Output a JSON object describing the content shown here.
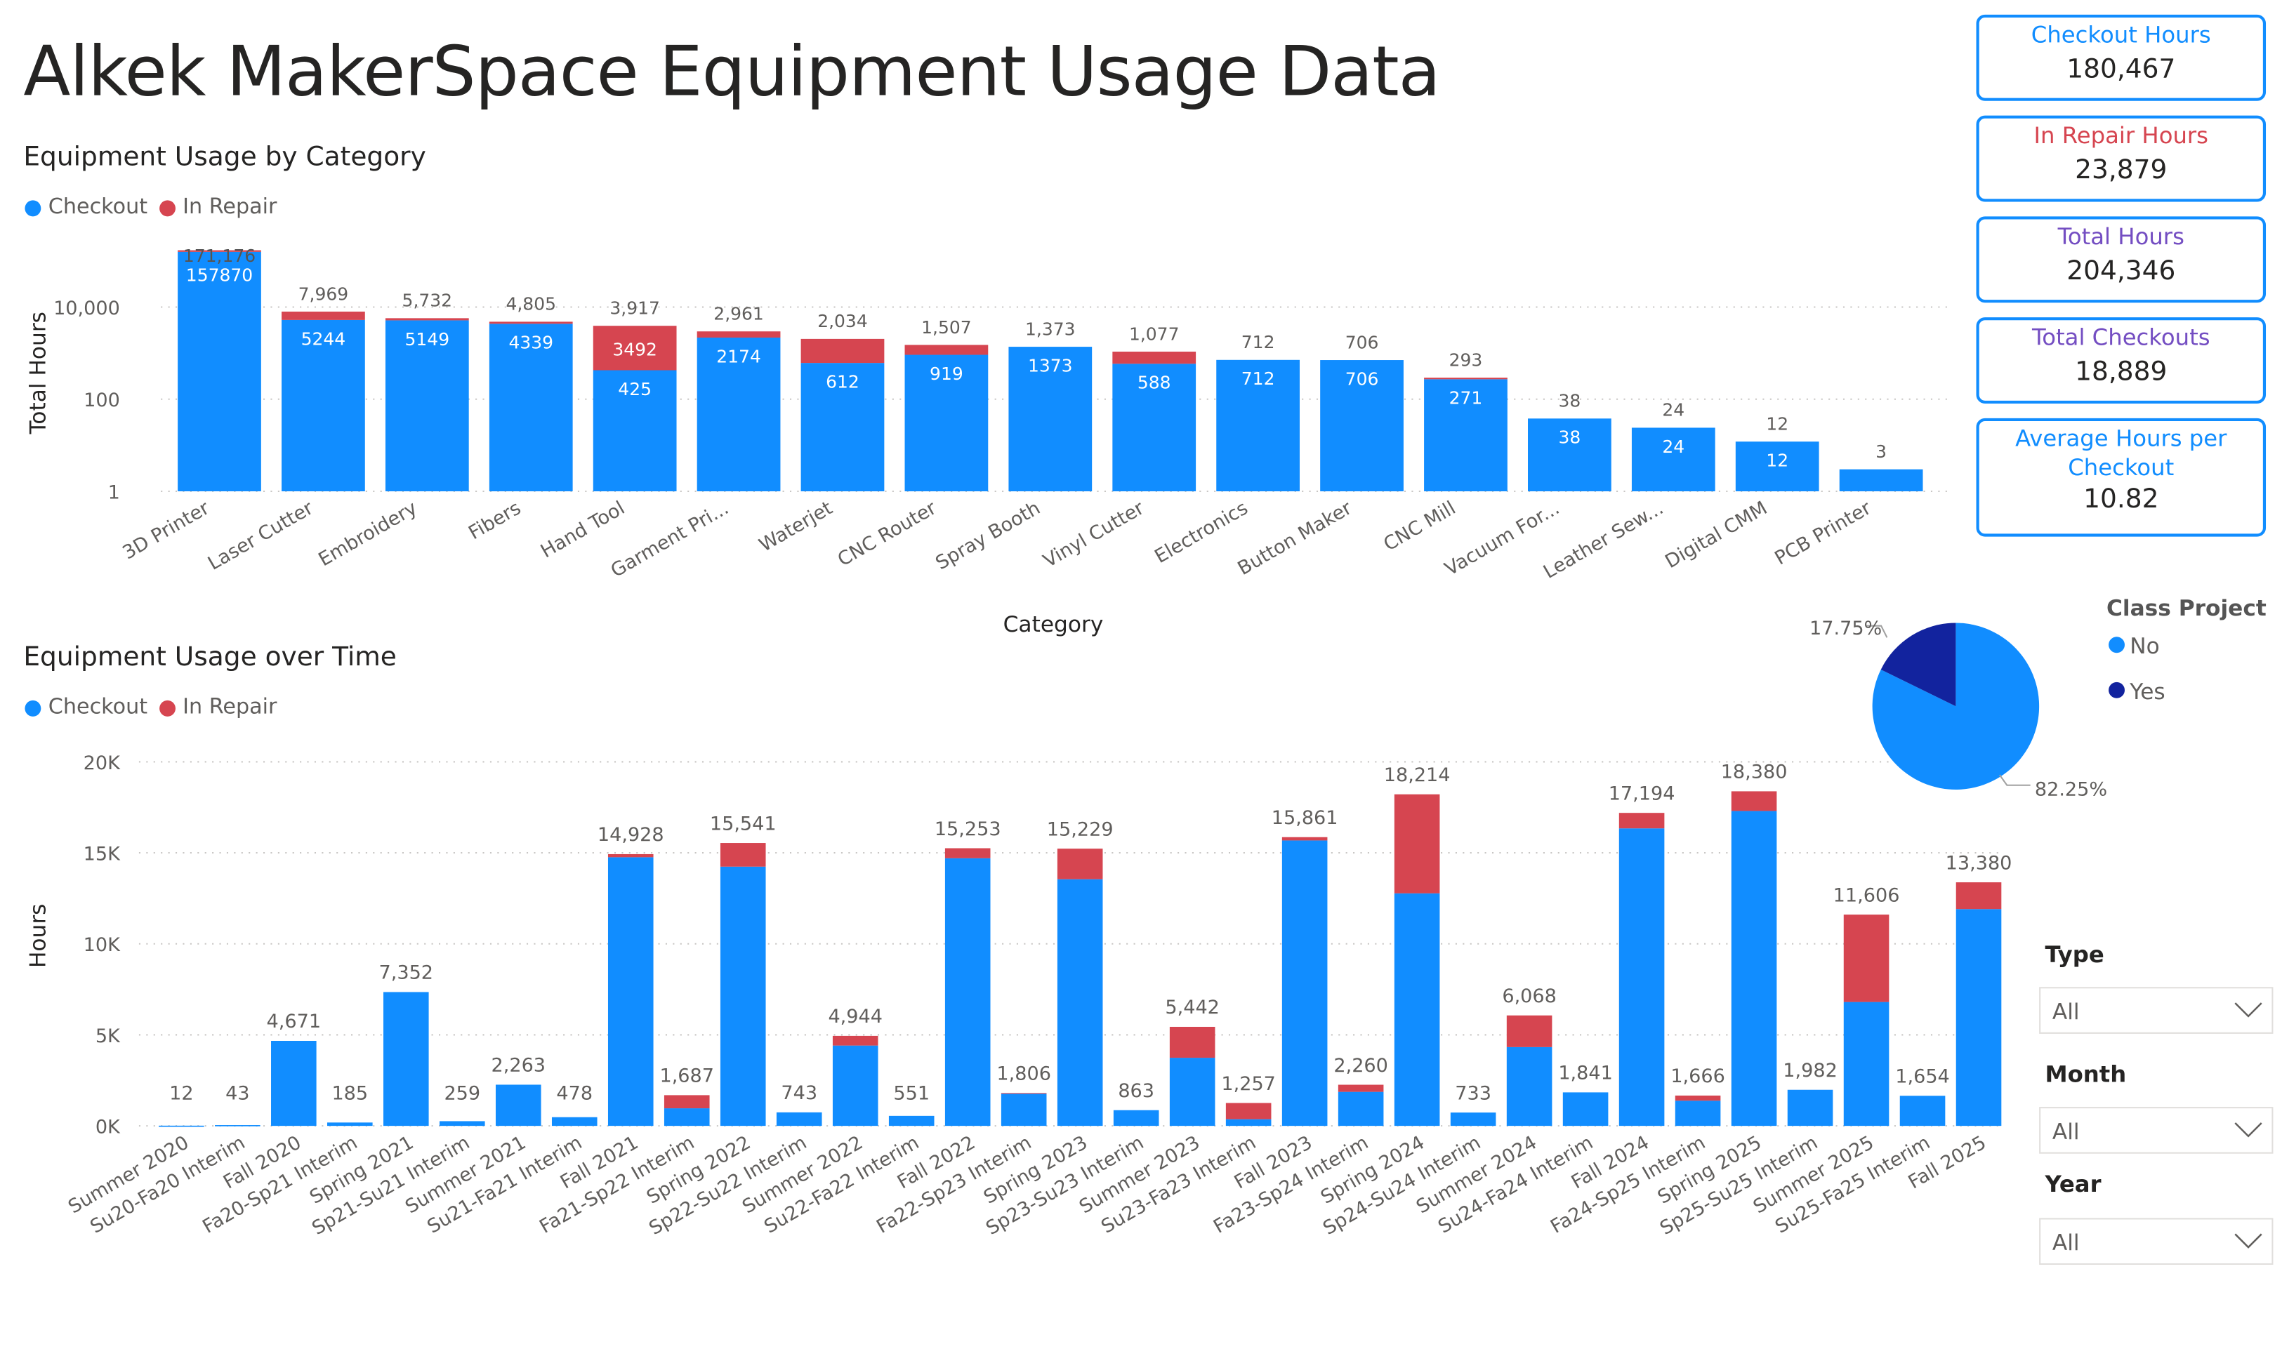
{
  "title": "Alkek MakerSpace Equipment Usage Data",
  "colors": {
    "checkout": "#118dff",
    "in_repair": "#d64550",
    "class_yes": "#12239e",
    "purple": "#744ec2"
  },
  "category_chart": {
    "section_title": "Equipment Usage by Category",
    "legend": [
      "Checkout",
      "In Repair"
    ]
  },
  "time_chart": {
    "section_title": "Equipment Usage over Time",
    "legend": [
      "Checkout",
      "In Repair"
    ]
  },
  "chart_data": [
    {
      "type": "bar",
      "stacked": true,
      "xlabel": "Category",
      "ylabel": "Total Hours",
      "yscale": "log",
      "yticks": [
        "1",
        "100",
        "10,000"
      ],
      "grid": true,
      "legend_position": "top-left",
      "categories": [
        "3D Printer",
        "Laser Cutter",
        "Embroidery",
        "Fibers",
        "Hand Tool",
        "Garment Pri...",
        "Waterjet",
        "CNC Router",
        "Spray Booth",
        "Vinyl Cutter",
        "Electronics",
        "Button Maker",
        "CNC Mill",
        "Vacuum For...",
        "Leather Sew...",
        "Digital CMM",
        "PCB Printer"
      ],
      "series": [
        {
          "name": "Checkout",
          "values": [
            157870,
            5244,
            5149,
            4339,
            425,
            2174,
            612,
            919,
            1373,
            588,
            712,
            706,
            271,
            38,
            24,
            12,
            3
          ]
        },
        {
          "name": "In Repair",
          "values": [
            13306,
            2725,
            583,
            466,
            3492,
            787,
            1422,
            588,
            0,
            489,
            0,
            0,
            22,
            0,
            0,
            0,
            0
          ]
        }
      ],
      "inner_labels": [
        "157870",
        "5244",
        "5149",
        "4339",
        "425",
        "2174",
        "612",
        "919",
        "1373",
        "588",
        "712",
        "706",
        "271",
        "38",
        "24",
        "12",
        ""
      ],
      "repair_labels": [
        "",
        "",
        "",
        "",
        "3492",
        "",
        "",
        "",
        "",
        "",
        "",
        "",
        "",
        "",
        "",
        "",
        ""
      ],
      "total_labels": [
        "171,176",
        "7,969",
        "5,732",
        "4,805",
        "3,917",
        "2,961",
        "2,034",
        "1,507",
        "1,373",
        "1,077",
        "712",
        "706",
        "293",
        "38",
        "24",
        "12",
        "3"
      ]
    },
    {
      "type": "bar",
      "stacked": true,
      "xlabel": "",
      "ylabel": "Hours",
      "ylim": [
        0,
        20000
      ],
      "yticks": [
        "0K",
        "5K",
        "10K",
        "15K",
        "20K"
      ],
      "grid": true,
      "legend_position": "top-left",
      "categories": [
        "Summer 2020",
        "Su20-Fa20 Interim",
        "Fall 2020",
        "Fa20-Sp21 Interim",
        "Spring 2021",
        "Sp21-Su21 Interim",
        "Summer 2021",
        "Su21-Fa21 Interim",
        "Fall 2021",
        "Fa21-Sp22 Interim",
        "Spring 2022",
        "Sp22-Su22 Interim",
        "Summer 2022",
        "Su22-Fa22 Interim",
        "Fall 2022",
        "Fa22-Sp23 Interim",
        "Spring 2023",
        "Sp23-Su23 Interim",
        "Summer 2023",
        "Su23-Fa23 Interim",
        "Fall 2023",
        "Fa23-Sp24 Interim",
        "Spring 2024",
        "Sp24-Su24 Interim",
        "Summer 2024",
        "Su24-Fa24 Interim",
        "Fall 2024",
        "Fa24-Sp25 Interim",
        "Spring 2025",
        "Sp25-Su25 Interim",
        "Summer 2025",
        "Su25-Fa25 Interim",
        "Fall 2025"
      ],
      "series": [
        {
          "name": "Checkout",
          "values": [
            12,
            43,
            4671,
            185,
            7352,
            259,
            2263,
            478,
            14758,
            967,
            14241,
            743,
            4414,
            551,
            14703,
            1766,
            13549,
            863,
            3742,
            367,
            15681,
            1870,
            12774,
            733,
            4328,
            1841,
            16344,
            1386,
            17300,
            1982,
            6806,
            1654,
            11910
          ]
        },
        {
          "name": "In Repair",
          "values": [
            0,
            0,
            0,
            0,
            0,
            0,
            0,
            0,
            170,
            720,
            1300,
            0,
            530,
            0,
            550,
            40,
            1680,
            0,
            1700,
            890,
            180,
            390,
            5440,
            0,
            1740,
            0,
            850,
            280,
            1080,
            0,
            4800,
            0,
            1470
          ]
        }
      ],
      "total_labels": [
        "12",
        "43",
        "4,671",
        "185",
        "7,352",
        "259",
        "2,263",
        "478",
        "14,928",
        "1,687",
        "15,541",
        "743",
        "4,944",
        "551",
        "15,253",
        "1,806",
        "15,229",
        "863",
        "5,442",
        "1,257",
        "15,861",
        "2,260",
        "18,214",
        "733",
        "6,068",
        "1,841",
        "17,194",
        "1,666",
        "18,380",
        "1,982",
        "11,606",
        "1,654",
        "13,380"
      ]
    },
    {
      "type": "pie",
      "legend_title": "Class Project",
      "legend_position": "right",
      "slices": [
        {
          "name": "No",
          "value": 82.25,
          "label": "82.25%"
        },
        {
          "name": "Yes",
          "value": 17.75,
          "label": "17.75%"
        }
      ]
    }
  ],
  "kpis": [
    {
      "label": "Checkout Hours",
      "value": "180,467",
      "color": "#118dff"
    },
    {
      "label": "In Repair Hours",
      "value": "23,879",
      "color": "#d64550"
    },
    {
      "label": "Total Hours",
      "value": "204,346",
      "color": "#744ec2"
    },
    {
      "label": "Total Checkouts",
      "value": "18,889",
      "color": "#744ec2"
    },
    {
      "label": "Average Hours per Checkout",
      "value": "10.82",
      "color": "#118dff"
    }
  ],
  "slicers": [
    {
      "label": "Type",
      "value": "All"
    },
    {
      "label": "Month",
      "value": "All"
    },
    {
      "label": "Year",
      "value": "All"
    }
  ]
}
